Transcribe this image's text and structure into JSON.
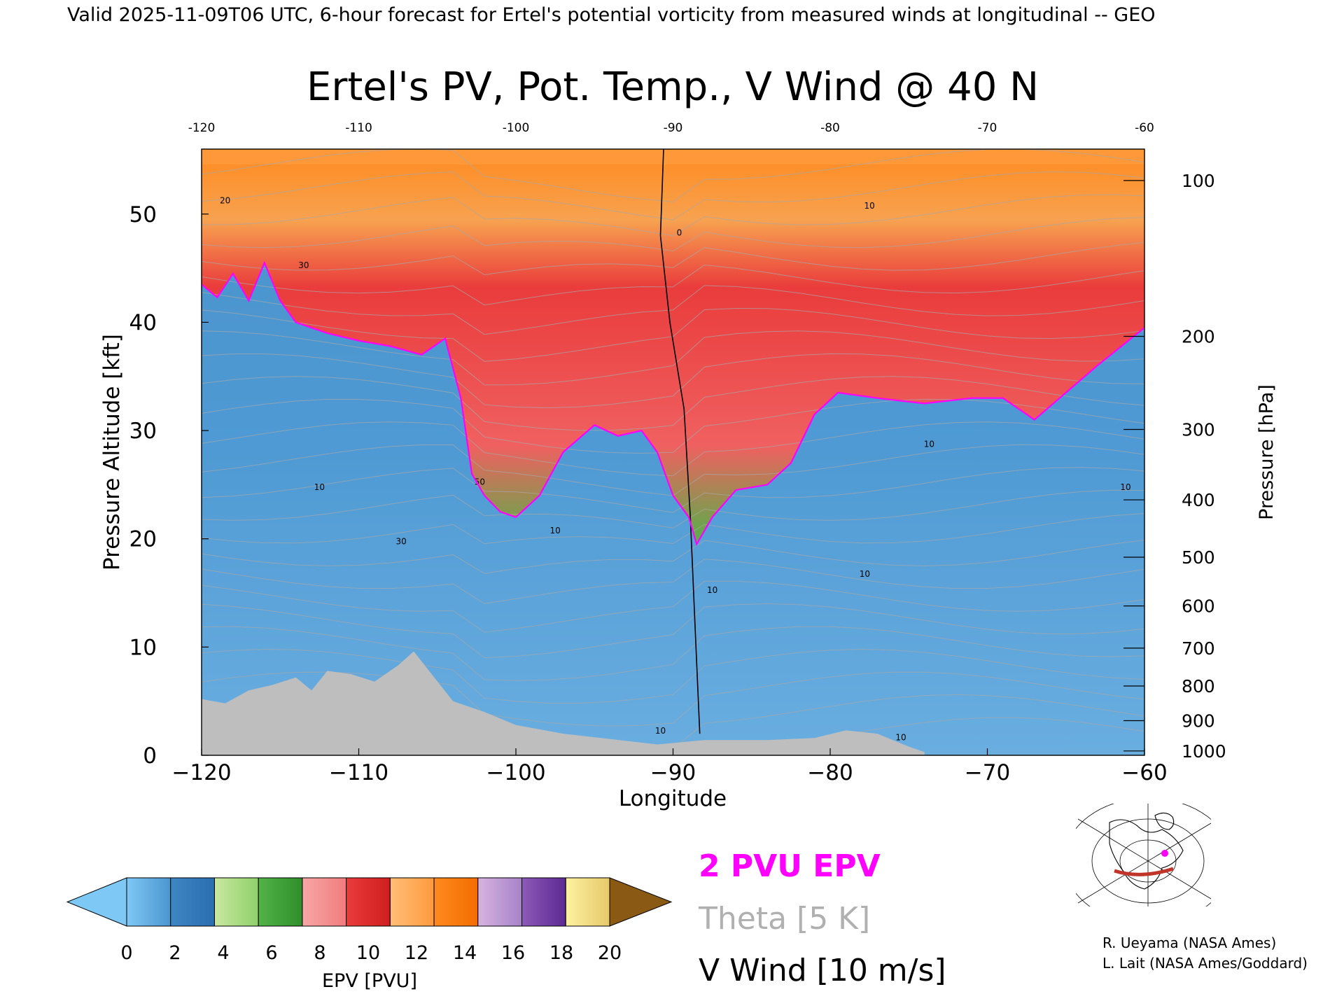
{
  "header": {
    "valid_line": "Valid 2025-11-09T06 UTC, 6-hour forecast for Ertel's potential vorticity from measured winds at longitudinal -- GEO"
  },
  "chart_data": {
    "type": "heatmap",
    "title": "Ertel's PV, Pot. Temp., V Wind @ 40 N",
    "xlabel": "Longitude",
    "ylabel": "Pressure Altitude [kft]",
    "ylabel_right": "Pressure [hPa]",
    "xlim": [
      -120,
      -60
    ],
    "ylim": [
      0,
      56
    ],
    "x_ticks": [
      -120,
      -110,
      -100,
      -90,
      -80,
      -70,
      -60
    ],
    "x_tick_labels": [
      "−120",
      "−110",
      "−100",
      "−90",
      "−80",
      "−70",
      "−60"
    ],
    "top_x_tick_labels": [
      "-120",
      "-110",
      "-100",
      "-90",
      "-80",
      "-70",
      "-60"
    ],
    "y_ticks": [
      0,
      10,
      20,
      30,
      40,
      50
    ],
    "y_tick_labels": [
      "0",
      "10",
      "20",
      "30",
      "40",
      "50"
    ],
    "pressure_ticks": [
      {
        "hpa": 100,
        "kft": 53.1,
        "label": "100"
      },
      {
        "hpa": 200,
        "kft": 38.7,
        "label": "200"
      },
      {
        "hpa": 300,
        "kft": 30.1,
        "label": "300"
      },
      {
        "hpa": 400,
        "kft": 23.6,
        "label": "400"
      },
      {
        "hpa": 500,
        "kft": 18.3,
        "label": "500"
      },
      {
        "hpa": 600,
        "kft": 13.8,
        "label": "600"
      },
      {
        "hpa": 700,
        "kft": 9.9,
        "label": "700"
      },
      {
        "hpa": 800,
        "kft": 6.4,
        "label": "800"
      },
      {
        "hpa": 900,
        "kft": 3.2,
        "label": "900"
      },
      {
        "hpa": 1000,
        "kft": 0.4,
        "label": "1000"
      }
    ],
    "tropopause_2pvu_kft": [
      {
        "x": -120,
        "y": 43.5
      },
      {
        "x": -119,
        "y": 42.3
      },
      {
        "x": -118,
        "y": 44.5
      },
      {
        "x": -117,
        "y": 42.0
      },
      {
        "x": -116,
        "y": 45.5
      },
      {
        "x": -115,
        "y": 42.0
      },
      {
        "x": -114,
        "y": 40.0
      },
      {
        "x": -112,
        "y": 39.0
      },
      {
        "x": -110,
        "y": 38.3
      },
      {
        "x": -108,
        "y": 37.8
      },
      {
        "x": -106,
        "y": 37.0
      },
      {
        "x": -104.5,
        "y": 38.5
      },
      {
        "x": -103.5,
        "y": 33.0
      },
      {
        "x": -102.8,
        "y": 26.0
      },
      {
        "x": -102,
        "y": 24.0
      },
      {
        "x": -101,
        "y": 22.5
      },
      {
        "x": -100,
        "y": 22.0
      },
      {
        "x": -98.5,
        "y": 24.0
      },
      {
        "x": -97,
        "y": 28.0
      },
      {
        "x": -95,
        "y": 30.5
      },
      {
        "x": -93.5,
        "y": 29.5
      },
      {
        "x": -92,
        "y": 30.0
      },
      {
        "x": -91,
        "y": 28.0
      },
      {
        "x": -90,
        "y": 24.0
      },
      {
        "x": -89,
        "y": 22.0
      },
      {
        "x": -88.5,
        "y": 19.5
      },
      {
        "x": -87.5,
        "y": 22.0
      },
      {
        "x": -86,
        "y": 24.5
      },
      {
        "x": -84,
        "y": 25.0
      },
      {
        "x": -82.5,
        "y": 27.0
      },
      {
        "x": -81,
        "y": 31.5
      },
      {
        "x": -79.5,
        "y": 33.5
      },
      {
        "x": -77,
        "y": 33.0
      },
      {
        "x": -74,
        "y": 32.5
      },
      {
        "x": -71,
        "y": 33.0
      },
      {
        "x": -69,
        "y": 33.0
      },
      {
        "x": -67,
        "y": 31.0
      },
      {
        "x": -65,
        "y": 33.5
      },
      {
        "x": -63,
        "y": 36.0
      },
      {
        "x": -60,
        "y": 39.5
      }
    ],
    "terrain_kft": [
      {
        "x": -120,
        "y": 5.2
      },
      {
        "x": -118.5,
        "y": 4.8
      },
      {
        "x": -117,
        "y": 6.0
      },
      {
        "x": -115.5,
        "y": 6.5
      },
      {
        "x": -114,
        "y": 7.2
      },
      {
        "x": -113,
        "y": 6.0
      },
      {
        "x": -112,
        "y": 7.8
      },
      {
        "x": -110.5,
        "y": 7.5
      },
      {
        "x": -109,
        "y": 6.8
      },
      {
        "x": -107.5,
        "y": 8.3
      },
      {
        "x": -106.5,
        "y": 9.6
      },
      {
        "x": -105.2,
        "y": 7.2
      },
      {
        "x": -104,
        "y": 5.0
      },
      {
        "x": -102,
        "y": 4.0
      },
      {
        "x": -100,
        "y": 2.8
      },
      {
        "x": -97,
        "y": 2.0
      },
      {
        "x": -94,
        "y": 1.5
      },
      {
        "x": -91,
        "y": 1.0
      },
      {
        "x": -88,
        "y": 1.4
      },
      {
        "x": -84,
        "y": 1.4
      },
      {
        "x": -81,
        "y": 1.6
      },
      {
        "x": -79,
        "y": 2.3
      },
      {
        "x": -77,
        "y": 2.0
      },
      {
        "x": -75,
        "y": 0.8
      },
      {
        "x": -74,
        "y": 0.3
      }
    ],
    "v_wind_zero_line": [
      {
        "x": -90.6,
        "y": 56
      },
      {
        "x": -90.8,
        "y": 48
      },
      {
        "x": -90.2,
        "y": 40
      },
      {
        "x": -89.3,
        "y": 32
      },
      {
        "x": -88.9,
        "y": 22
      },
      {
        "x": -88.6,
        "y": 12
      },
      {
        "x": -88.3,
        "y": 2
      }
    ],
    "v_wind_contour_labels": [
      {
        "x": -118.5,
        "y": 51.0,
        "text": "20"
      },
      {
        "x": -113.5,
        "y": 45.0,
        "text": "30"
      },
      {
        "x": -112.5,
        "y": 24.5,
        "text": "10"
      },
      {
        "x": -107.3,
        "y": 19.5,
        "text": "30"
      },
      {
        "x": -102.3,
        "y": 25.0,
        "text": "50"
      },
      {
        "x": -97.5,
        "y": 20.5,
        "text": "10"
      },
      {
        "x": -90.8,
        "y": 2.0,
        "text": "10"
      },
      {
        "x": -89.6,
        "y": 48.0,
        "text": "0"
      },
      {
        "x": -77.5,
        "y": 50.5,
        "text": "10"
      },
      {
        "x": -87.5,
        "y": 15.0,
        "text": "10"
      },
      {
        "x": -77.8,
        "y": 16.5,
        "text": "10"
      },
      {
        "x": -73.7,
        "y": 28.5,
        "text": "10"
      },
      {
        "x": -75.5,
        "y": 1.4,
        "text": "10"
      },
      {
        "x": -61.2,
        "y": 24.5,
        "text": "10"
      }
    ],
    "legend": {
      "pv_label": "2 PVU EPV",
      "theta_label": "Theta [5 K]",
      "wind_label": "V Wind [10 m/s]"
    },
    "colorbar": {
      "label": "EPV [PVU]",
      "ticks": [
        "0",
        "2",
        "4",
        "6",
        "8",
        "10",
        "12",
        "14",
        "16",
        "18",
        "20"
      ],
      "colors": [
        [
          "#7ec8f5",
          "#4a96d0"
        ],
        [
          "#3f86c4",
          "#2a6eaf"
        ],
        [
          "#c9e8a0",
          "#8fd06a"
        ],
        [
          "#52b348",
          "#2f8e2a"
        ],
        [
          "#f7a6a6",
          "#f07c7c"
        ],
        [
          "#ea3c3c",
          "#cf1e1e"
        ],
        [
          "#ffbe78",
          "#ff9a3c"
        ],
        [
          "#ff8a1e",
          "#f26d00"
        ],
        [
          "#d6b4e0",
          "#a882c9"
        ],
        [
          "#8e5ab8",
          "#5b2a93"
        ],
        [
          "#fdf2a0",
          "#e6c86a"
        ]
      ],
      "under_color": "#7ec8f5",
      "over_color": "#8a5a14"
    },
    "colors": {
      "tropopause": "#ff00ff",
      "terrain": "#bebebe",
      "theta": "#a8a8a8",
      "wind": "#000000",
      "troposphere": "#3f86c4",
      "stratosphere": "#ea3c3c"
    }
  },
  "inset_map": {
    "description_icon": "globe-map-icon",
    "section_color": "#c0342a",
    "marker_color": "#ff00ff"
  },
  "credits": {
    "line1": "R. Ueyama (NASA Ames)",
    "line2": "L. Lait (NASA Ames/Goddard)"
  }
}
